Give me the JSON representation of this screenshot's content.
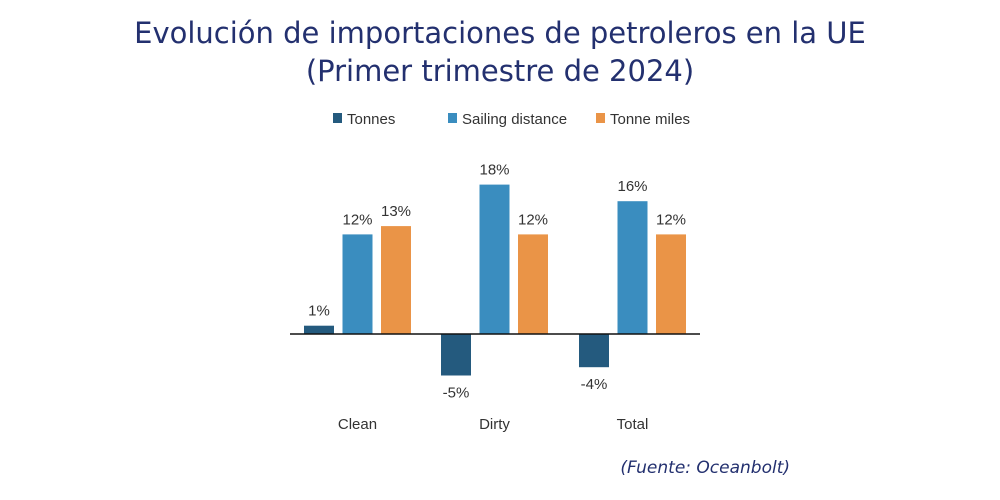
{
  "chart_data": {
    "type": "bar",
    "title": "Evolución de importaciones de petroleros en la UE",
    "subtitle": "(Primer trimestre de 2024)",
    "categories": [
      "Clean",
      "Dirty",
      "Total"
    ],
    "series": [
      {
        "name": "Tonnes",
        "values": [
          1,
          -5,
          -4
        ],
        "labels": [
          "1%",
          "-5%",
          "-4%"
        ],
        "color": "#245a7e"
      },
      {
        "name": "Sailing distance",
        "values": [
          12,
          18,
          16
        ],
        "labels": [
          "12%",
          "18%",
          "16%"
        ],
        "color": "#3a8dbf"
      },
      {
        "name": "Tonne miles",
        "values": [
          13,
          12,
          12
        ],
        "labels": [
          "13%",
          "12%",
          "12%"
        ],
        "color": "#ea9447"
      }
    ],
    "unit": "%",
    "legend": "top",
    "grid": false,
    "source": "(Fuente: Oceanbolt)"
  }
}
